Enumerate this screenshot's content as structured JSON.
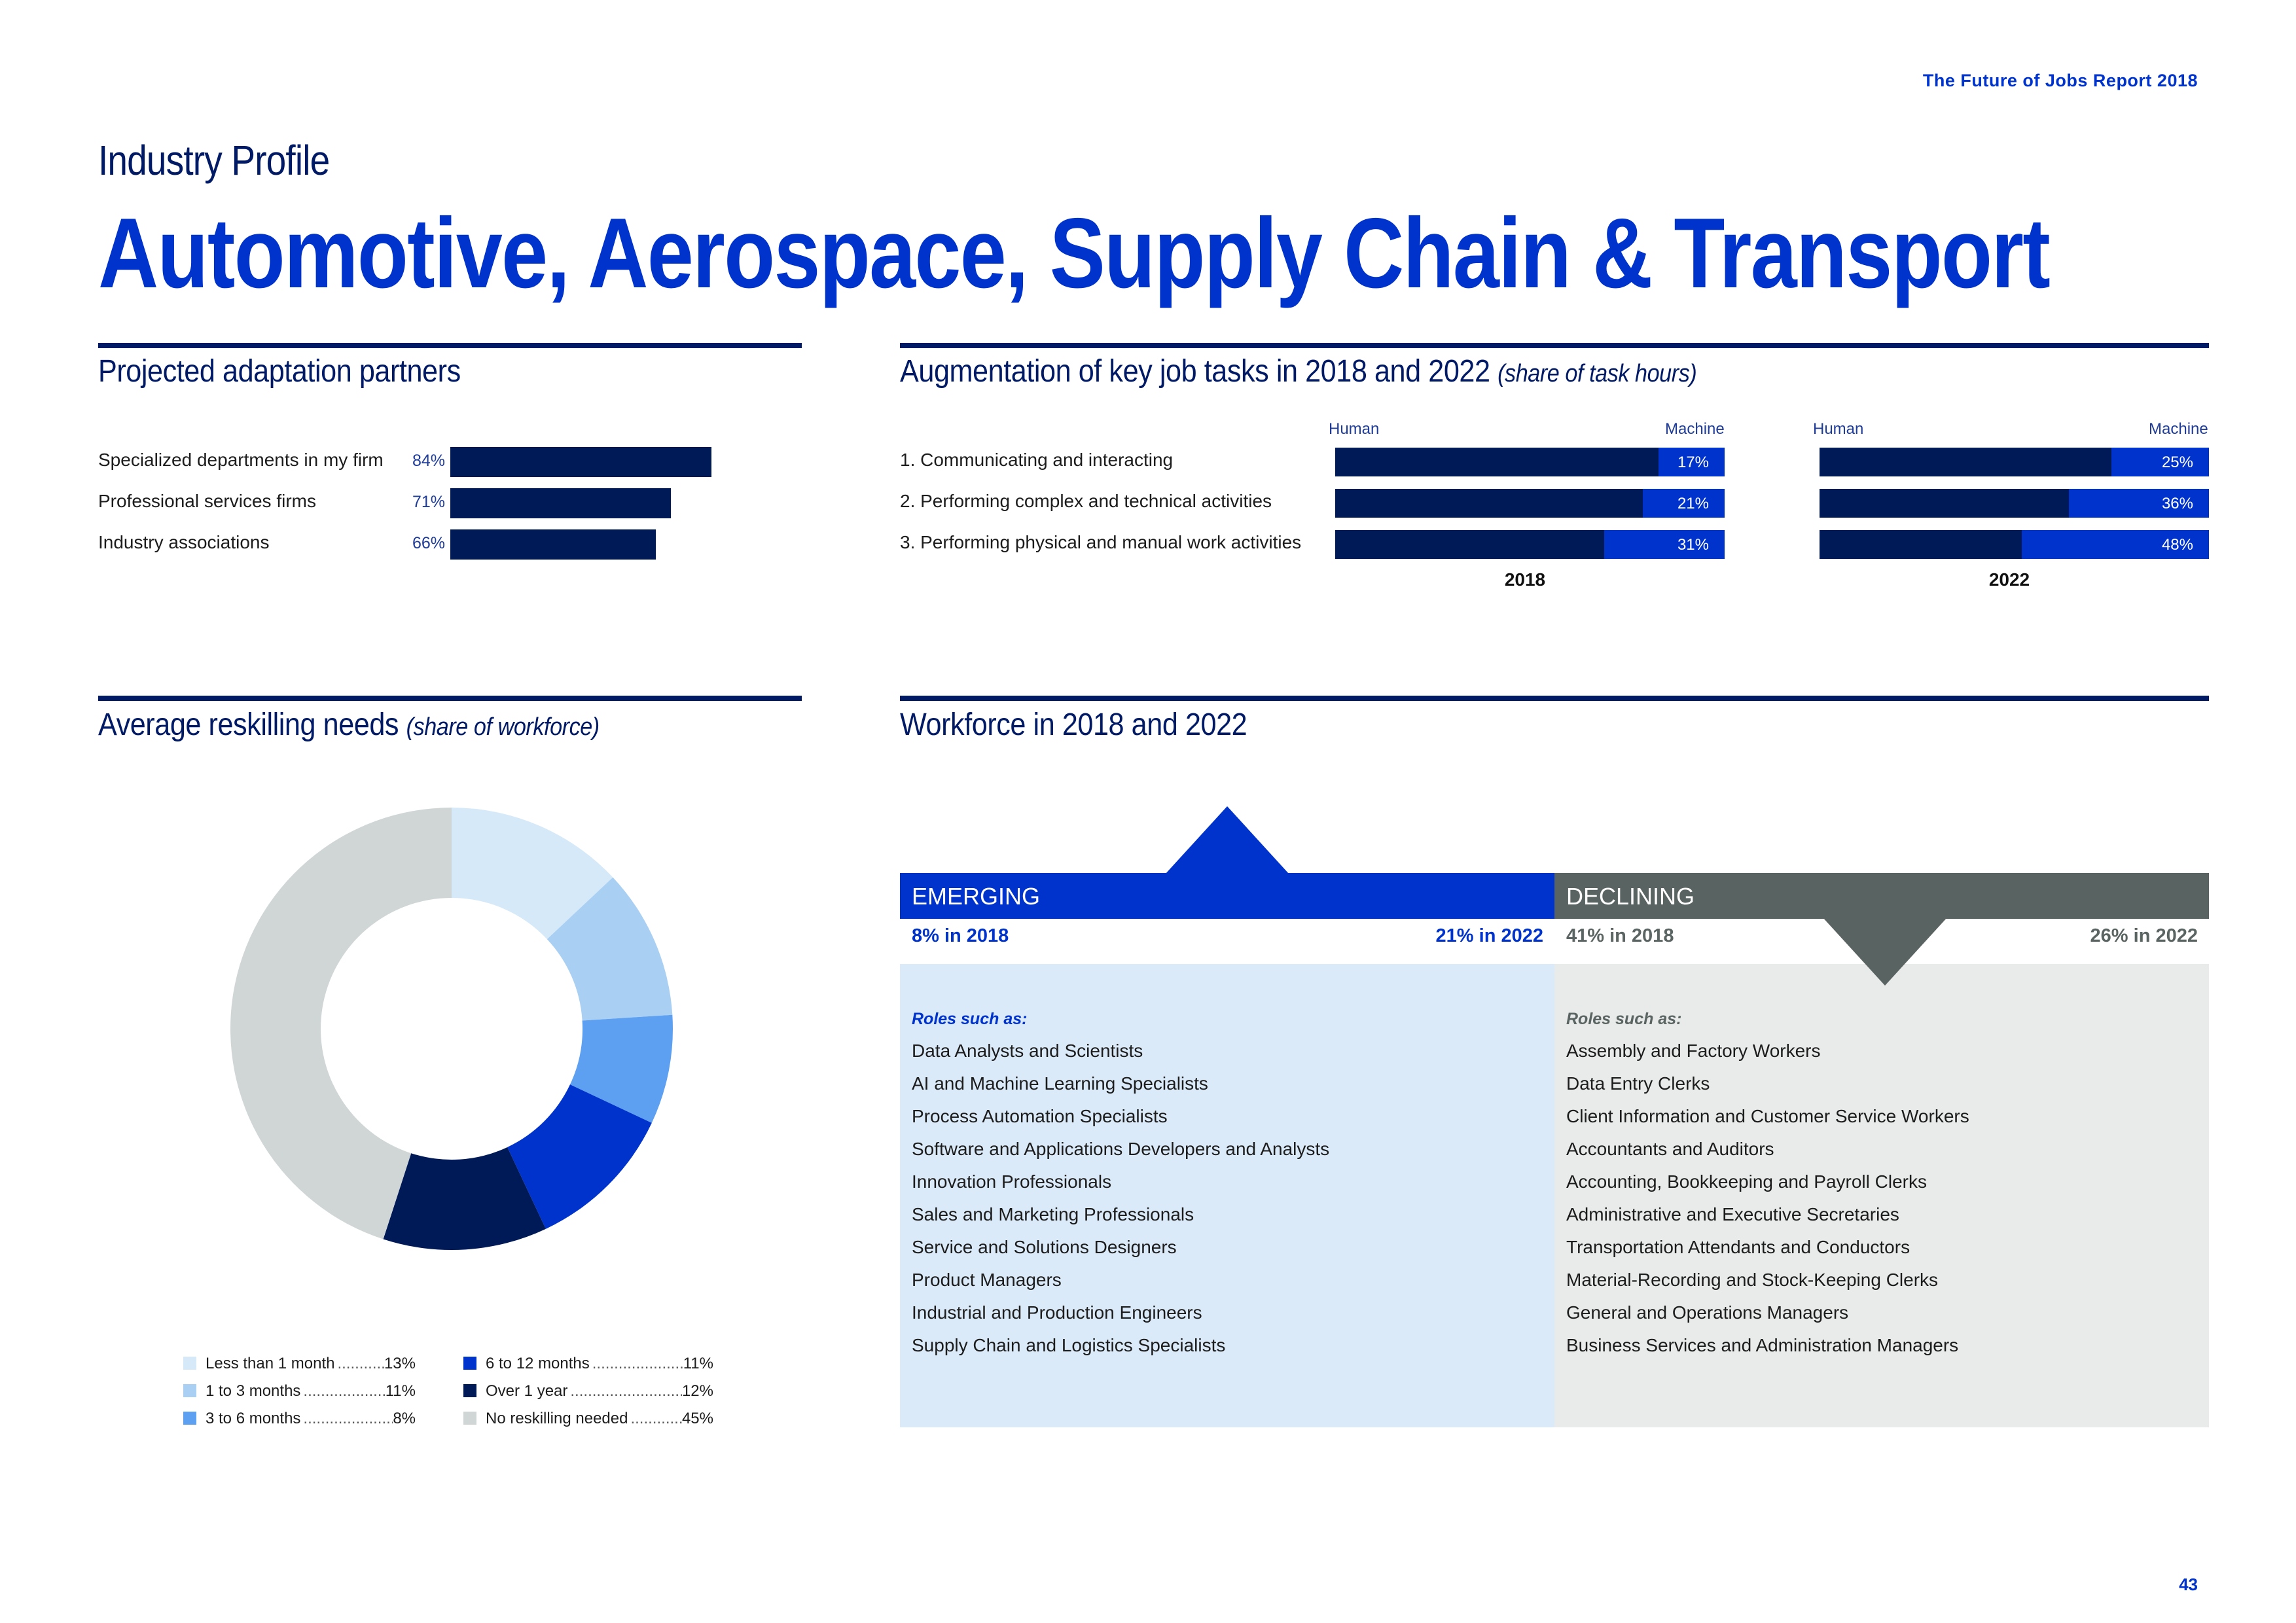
{
  "header": {
    "report_name": "The Future of Jobs Report 2018",
    "kicker": "Industry Profile",
    "title": "Automotive, Aerospace, Supply Chain & Transport"
  },
  "partners": {
    "title": "Projected adaptation partners",
    "items": [
      {
        "label": "Specialized departments in my firm",
        "pct_label": "84%",
        "value": 84
      },
      {
        "label": "Professional services firms",
        "pct_label": "71%",
        "value": 71
      },
      {
        "label": "Industry associations",
        "pct_label": "66%",
        "value": 66
      }
    ]
  },
  "augmentation": {
    "title": "Augmentation of key job tasks in 2018 and 2022",
    "subtitle": "(share of task hours)",
    "human_label": "Human",
    "machine_label": "Machine",
    "tasks": [
      "1.  Communicating and interacting",
      "2.  Performing complex and technical activities",
      "3.  Performing physical and manual work activities"
    ],
    "years": [
      {
        "label": "2018",
        "machine": [
          17,
          21,
          31
        ],
        "machine_labels": [
          "17%",
          "21%",
          "31%"
        ]
      },
      {
        "label": "2022",
        "machine": [
          25,
          36,
          48
        ],
        "machine_labels": [
          "25%",
          "36%",
          "48%"
        ]
      }
    ]
  },
  "reskilling": {
    "title": "Average reskilling needs",
    "subtitle": "(share of workforce)",
    "legend": [
      {
        "label": "Less than 1 month",
        "pct": "13%",
        "value": 13,
        "color": "#d6e9f8"
      },
      {
        "label": "1 to 3 months",
        "pct": "11%",
        "value": 11,
        "color": "#a9d0f2"
      },
      {
        "label": "3 to 6 months",
        "pct": "8%",
        "value": 8,
        "color": "#5d9ff0"
      },
      {
        "label": "6 to 12 months",
        "pct": "11%",
        "value": 11,
        "color": "#0033cc"
      },
      {
        "label": "Over 1 year",
        "pct": "12%",
        "value": 12,
        "color": "#001a57"
      },
      {
        "label": "No reskilling needed",
        "pct": "45%",
        "value": 45,
        "color": "#d0d6d6"
      }
    ]
  },
  "workforce": {
    "title": "Workforce in 2018 and 2022",
    "emerging": {
      "heading": "EMERGING",
      "start": "8% in 2018",
      "end": "21% in 2022",
      "roles_heading": "Roles such as:",
      "roles": [
        "Data Analysts and Scientists",
        "AI and Machine Learning Specialists",
        "Process Automation Specialists",
        "Software and Applications Developers and Analysts",
        "Innovation Professionals",
        "Sales and Marketing Professionals",
        "Service and Solutions Designers",
        "Product Managers",
        "Industrial and Production Engineers",
        "Supply Chain and Logistics Specialists"
      ]
    },
    "declining": {
      "heading": "DECLINING",
      "start": "41% in 2018",
      "end": "26% in 2022",
      "roles_heading": "Roles such as:",
      "roles": [
        "Assembly and Factory Workers",
        "Data Entry Clerks",
        "Client Information and Customer Service Workers",
        "Accountants and Auditors",
        "Accounting,  Bookkeeping and Payroll Clerks",
        "Administrative and Executive Secretaries",
        "Transportation Attendants and Conductors",
        "Material-Recording and Stock-Keeping Clerks",
        "General and Operations Managers",
        "Business Services and Administration Managers"
      ]
    }
  },
  "page_number": "43"
}
